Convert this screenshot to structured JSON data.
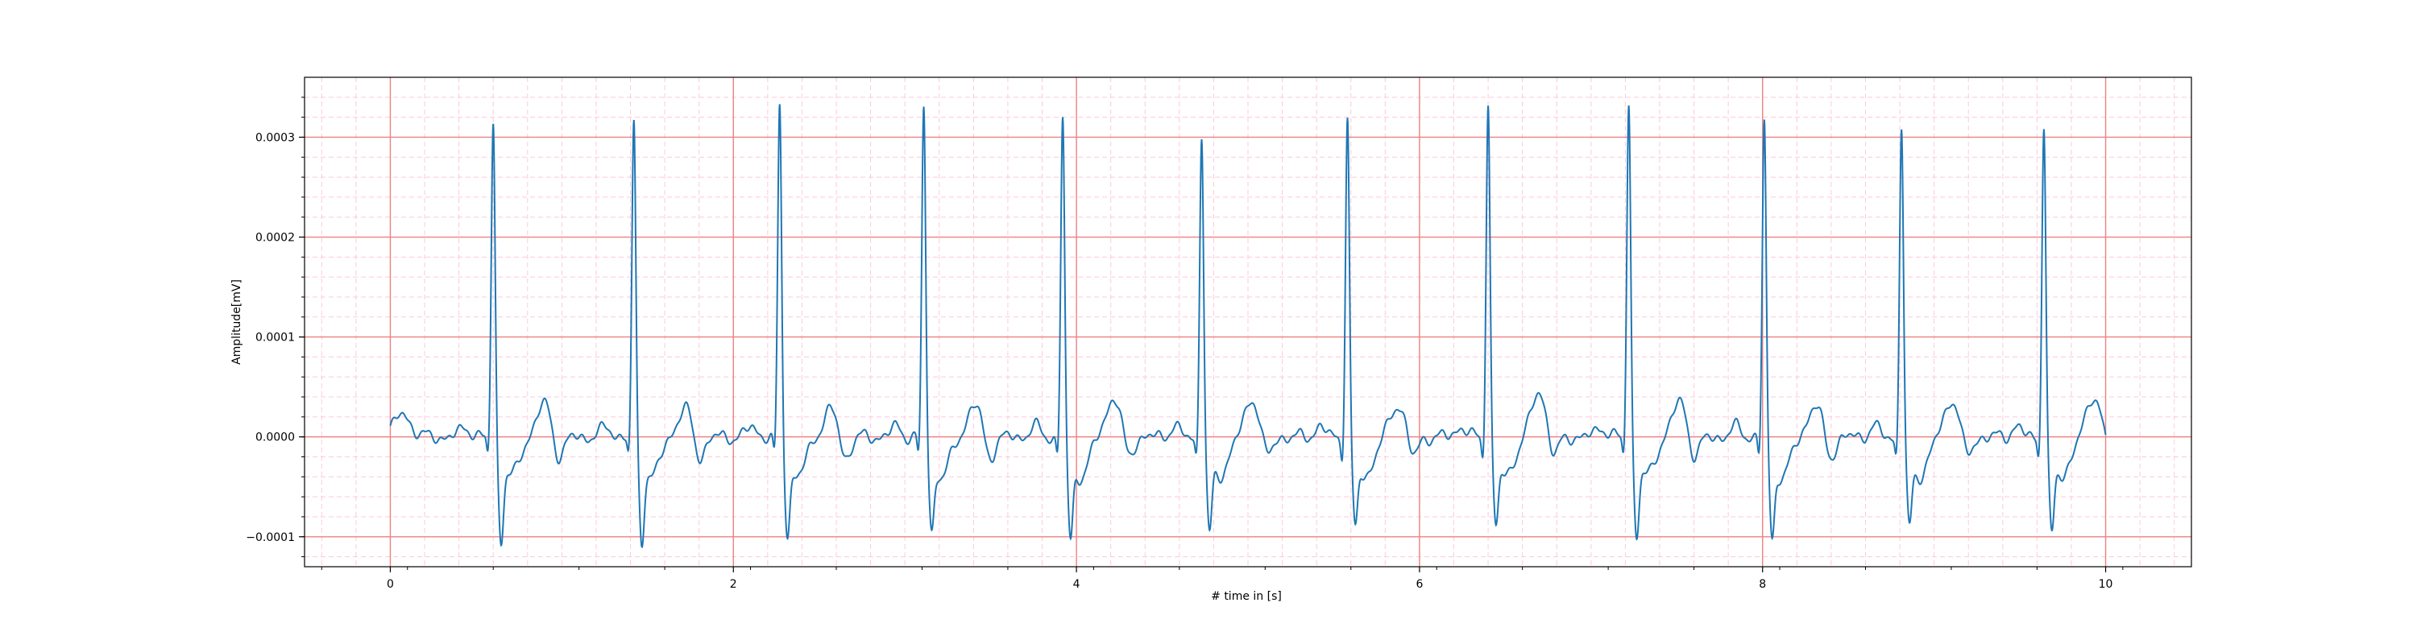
{
  "chart_data": {
    "type": "line",
    "title": "",
    "xlabel": "# time in [s]",
    "ylabel": "Amplitude[mV]",
    "xlim": [
      -0.5,
      10.5
    ],
    "ylim": [
      -0.00013,
      0.00036
    ],
    "x_ticks": [
      0,
      2,
      4,
      6,
      8,
      10
    ],
    "x_tick_labels": [
      "0",
      "2",
      "4",
      "6",
      "8",
      "10"
    ],
    "y_ticks": [
      -0.0001,
      0.0,
      0.0001,
      0.0002,
      0.0003
    ],
    "y_tick_labels": [
      "−0.0001",
      "0.0000",
      "0.0001",
      "0.0002",
      "0.0003"
    ],
    "grid": "on",
    "major_grid_color": "#f08080",
    "minor_grid_color": "#ffc8dc",
    "line_color": "#1f77b4",
    "r_peak_times": [
      0.6,
      1.42,
      2.27,
      3.11,
      3.92,
      4.73,
      5.58,
      6.4,
      7.22,
      8.01,
      8.81,
      9.64
    ],
    "r_peak_values": [
      0.00032,
      0.00032,
      0.000335,
      0.000335,
      0.000325,
      0.00031,
      0.000325,
      0.00034,
      0.00034,
      0.00032,
      0.000318,
      0.00032
    ],
    "s_trough_values": [
      -0.0001,
      -0.000102,
      -9.5e-05,
      -9.3e-05,
      -0.000103,
      -9.6e-05,
      -9e-05,
      -8.6e-05,
      -9.5e-05,
      -0.000101,
      -9e-05,
      -9.7e-05
    ],
    "t_wave_values": [
      3.3e-05,
      2.8e-05,
      2.7e-05,
      3.2e-05,
      4e-05,
      3.8e-05,
      3.3e-05,
      4.5e-05,
      3.5e-05,
      3.2e-05,
      3.8e-05,
      4.2e-05
    ],
    "series": [
      {
        "x": [
          0,
          0.05,
          0.1,
          0.15,
          0.2,
          0.25,
          0.3,
          0.35,
          0.4,
          0.45,
          0.5,
          0.55,
          0.58,
          0.6,
          0.63,
          0.66,
          0.7,
          0.75,
          0.8,
          0.85,
          0.9,
          0.95,
          1.0,
          1.05,
          1.1,
          1.15,
          1.2,
          1.25,
          1.3,
          1.35,
          1.4,
          1.42,
          1.45,
          1.48,
          1.52,
          1.58,
          1.65,
          1.72,
          1.8,
          1.9,
          2.0,
          2.1,
          2.2,
          2.27
        ],
        "y": [
          1e-05,
          2.5e-05,
          1.5e-05,
          -2e-05,
          -2.5e-05,
          -1e-05,
          -1.2e-05,
          -5e-06,
          -3e-06,
          5e-06,
          7e-06,
          8e-06,
          -2e-05,
          0.00032,
          -2e-05,
          -0.0001,
          -6e-05,
          -2e-05,
          3e-05,
          2e-05,
          -2e-05,
          -1.5e-05,
          -5e-06,
          0.0,
          -5e-06,
          1e-05,
          1.2e-05,
          5e-06,
          8e-06,
          5e-06,
          -2e-05,
          0.00032,
          -3e-05,
          -0.000102,
          -6e-05,
          -1.5e-05,
          2e-05,
          -2e-05,
          -5e-06,
          -3e-06,
          2e-05,
          -5e-06,
          5e-06,
          0.000335
        ]
      }
    ]
  }
}
